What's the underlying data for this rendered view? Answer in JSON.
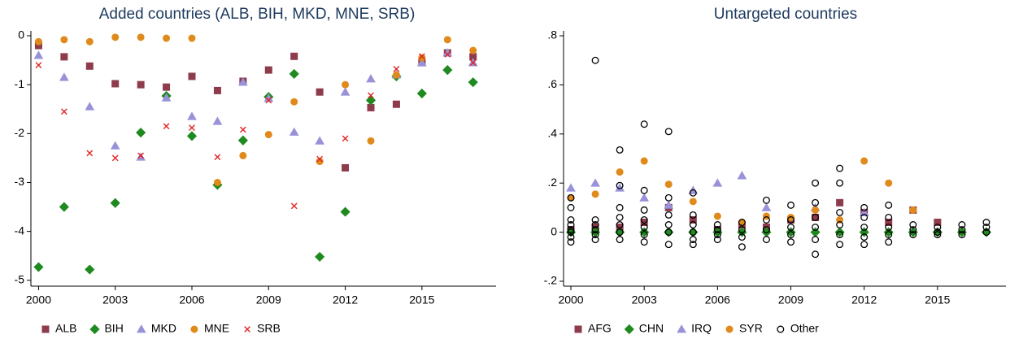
{
  "chart_data": [
    {
      "type": "scatter",
      "title": "Added countries (ALB, BIH, MKD, MNE, SRB)",
      "xlim": [
        1999.7,
        2017.9
      ],
      "xticks": [
        2000,
        2003,
        2006,
        2009,
        2012,
        2015
      ],
      "ylim": [
        -5.12,
        0.1
      ],
      "yticks": [
        0,
        -1,
        -2,
        -3,
        -4,
        -5
      ],
      "grid": false,
      "series": [
        {
          "name": "ALB",
          "color": "#8e3b4b",
          "marker": "square",
          "x": [
            2000,
            2001,
            2002,
            2003,
            2004,
            2005,
            2006,
            2007,
            2008,
            2009,
            2010,
            2011,
            2012,
            2013,
            2014,
            2015,
            2016,
            2017
          ],
          "values": [
            -0.2,
            -0.43,
            -0.62,
            -0.98,
            -1.0,
            -1.05,
            -0.83,
            -1.12,
            -0.93,
            -0.7,
            -0.42,
            -1.15,
            -2.7,
            -1.47,
            -1.4,
            -0.55,
            -0.35,
            -0.43
          ]
        },
        {
          "name": "BIH",
          "color": "#1f8a1f",
          "marker": "diamond",
          "x": [
            2000,
            2001,
            2002,
            2003,
            2004,
            2005,
            2006,
            2007,
            2008,
            2009,
            2010,
            2011,
            2012,
            2013,
            2014,
            2015,
            2016,
            2017
          ],
          "values": [
            -4.73,
            -3.5,
            -4.78,
            -3.42,
            -1.98,
            -1.23,
            -2.05,
            -3.05,
            -2.14,
            -1.25,
            -0.78,
            -4.52,
            -3.6,
            -1.32,
            -0.83,
            -1.18,
            -0.7,
            -0.95
          ]
        },
        {
          "name": "MKD",
          "color": "#9892d8",
          "marker": "triangle",
          "x": [
            2000,
            2001,
            2002,
            2003,
            2004,
            2005,
            2006,
            2007,
            2008,
            2009,
            2010,
            2011,
            2012,
            2013,
            2014,
            2015,
            2016,
            2017
          ],
          "values": [
            -0.4,
            -0.85,
            -1.45,
            -2.25,
            -2.48,
            -1.27,
            -1.65,
            -1.75,
            -0.95,
            -1.28,
            -1.97,
            -2.15,
            -1.15,
            -0.88,
            -0.8,
            -0.55,
            -0.35,
            -0.55
          ]
        },
        {
          "name": "MNE",
          "color": "#e08a1c",
          "marker": "circle",
          "x": [
            2000,
            2001,
            2002,
            2003,
            2004,
            2005,
            2006,
            2007,
            2008,
            2009,
            2010,
            2011,
            2012,
            2013,
            2014,
            2015,
            2016,
            2017
          ],
          "values": [
            -0.12,
            -0.08,
            -0.12,
            -0.03,
            -0.03,
            -0.05,
            -0.05,
            -3.0,
            -2.45,
            -2.02,
            -1.35,
            -2.57,
            -1.0,
            -2.15,
            -0.8,
            -0.45,
            -0.08,
            -0.3
          ]
        },
        {
          "name": "SRB",
          "color": "#e02424",
          "marker": "x",
          "x": [
            2000,
            2001,
            2002,
            2003,
            2004,
            2005,
            2006,
            2007,
            2008,
            2009,
            2010,
            2011,
            2012,
            2013,
            2014,
            2015,
            2016,
            2017
          ],
          "values": [
            -0.6,
            -1.55,
            -2.4,
            -2.5,
            -2.45,
            -1.85,
            -1.88,
            -2.48,
            -1.92,
            -1.32,
            -3.48,
            -2.52,
            -2.1,
            -1.22,
            -0.68,
            -0.42,
            -0.38,
            -0.55
          ]
        }
      ]
    },
    {
      "type": "scatter",
      "title": "Untargeted countries",
      "xlim": [
        1999.7,
        2017.8
      ],
      "xticks": [
        2000,
        2003,
        2006,
        2009,
        2012,
        2015
      ],
      "ylim": [
        -0.22,
        0.82
      ],
      "yticks": [
        {
          "value": 0.8,
          "label": ".8"
        },
        {
          "value": 0.6,
          "label": ".6"
        },
        {
          "value": 0.4,
          "label": ".4"
        },
        {
          "value": 0.2,
          "label": ".2"
        },
        0,
        {
          "value": -0.2,
          "label": "-.2"
        }
      ],
      "grid": false,
      "series": [
        {
          "name": "AFG",
          "color": "#8e3b4b",
          "marker": "square",
          "x": [
            2000,
            2001,
            2002,
            2003,
            2004,
            2005,
            2006,
            2007,
            2008,
            2009,
            2010,
            2011,
            2012,
            2013,
            2014,
            2015
          ],
          "values": [
            0.01,
            0.02,
            0.02,
            0.04,
            0.1,
            0.05,
            0.01,
            0.03,
            0.02,
            0.05,
            0.06,
            0.12,
            0.08,
            0.04,
            0.09,
            0.04
          ]
        },
        {
          "name": "CHN",
          "color": "#1f8a1f",
          "marker": "diamond",
          "x": [
            2000,
            2001,
            2002,
            2003,
            2004,
            2005,
            2006,
            2007,
            2008,
            2009,
            2010,
            2011,
            2012,
            2013,
            2014,
            2015,
            2016,
            2017
          ],
          "values": [
            0,
            0,
            0,
            0,
            0,
            0,
            0,
            0,
            0,
            0,
            0,
            0,
            0,
            0,
            0,
            0,
            0,
            0
          ]
        },
        {
          "name": "IRQ",
          "color": "#9892d8",
          "marker": "triangle",
          "x": [
            2000,
            2001,
            2002,
            2003,
            2004,
            2005,
            2006,
            2007,
            2008,
            2010,
            2012
          ],
          "values": [
            0.18,
            0.2,
            0.18,
            0.14,
            0.11,
            0.17,
            0.2,
            0.23,
            0.1,
            0.1,
            0.08
          ]
        },
        {
          "name": "SYR",
          "color": "#e08a1c",
          "marker": "circle",
          "x": [
            2000,
            2001,
            2002,
            2003,
            2004,
            2005,
            2006,
            2007,
            2008,
            2009,
            2010,
            2011,
            2012,
            2013,
            2014
          ],
          "values": [
            0.14,
            0.155,
            0.245,
            0.29,
            0.195,
            0.125,
            0.065,
            0.04,
            0.065,
            0.06,
            0.09,
            0.05,
            0.29,
            0.2,
            0.09
          ]
        },
        {
          "name": "Other",
          "color": "#000000",
          "marker": "hollow-circle",
          "x": [
            2000,
            2000,
            2000,
            2000,
            2000,
            2000,
            2000,
            2000,
            2001,
            2001,
            2001,
            2001,
            2001,
            2001,
            2002,
            2002,
            2002,
            2002,
            2002,
            2002,
            2002,
            2003,
            2003,
            2003,
            2003,
            2003,
            2003,
            2003,
            2004,
            2004,
            2004,
            2004,
            2004,
            2004,
            2005,
            2005,
            2005,
            2005,
            2005,
            2005,
            2006,
            2006,
            2006,
            2006,
            2007,
            2007,
            2007,
            2007,
            2008,
            2008,
            2008,
            2008,
            2009,
            2009,
            2009,
            2009,
            2009,
            2010,
            2010,
            2010,
            2010,
            2010,
            2010,
            2011,
            2011,
            2011,
            2011,
            2011,
            2011,
            2012,
            2012,
            2012,
            2012,
            2012,
            2013,
            2013,
            2013,
            2013,
            2013,
            2014,
            2014,
            2014,
            2015,
            2015,
            2015,
            2016,
            2016,
            2016,
            2017,
            2017,
            2017
          ],
          "values": [
            0.05,
            0.03,
            0.01,
            0,
            -0.02,
            -0.04,
            0.14,
            0.1,
            0.7,
            0.05,
            0.03,
            0.01,
            -0.01,
            -0.03,
            0.335,
            0.19,
            0.1,
            0.06,
            0.03,
            0,
            -0.03,
            0.44,
            0.17,
            0.09,
            0.05,
            0.02,
            -0.01,
            -0.04,
            0.41,
            0.14,
            0.07,
            0.03,
            0,
            -0.05,
            0.16,
            0.07,
            0.03,
            0,
            -0.03,
            -0.05,
            0.03,
            0.01,
            -0.01,
            -0.03,
            0.04,
            0.01,
            -0.02,
            -0.06,
            0.13,
            0.05,
            0.01,
            -0.03,
            0.11,
            0.05,
            0.02,
            -0.01,
            -0.04,
            0.2,
            0.12,
            0.06,
            0.02,
            -0.03,
            -0.09,
            0.26,
            0.2,
            0.08,
            0.03,
            -0.01,
            -0.05,
            0.1,
            0.06,
            0.02,
            -0.02,
            -0.05,
            0.11,
            0.06,
            0.02,
            -0.01,
            -0.04,
            0.03,
            0.01,
            -0.01,
            0.02,
            0,
            -0.01,
            0.03,
            0.01,
            -0.01,
            0.04,
            0.02,
            0
          ]
        }
      ]
    }
  ]
}
